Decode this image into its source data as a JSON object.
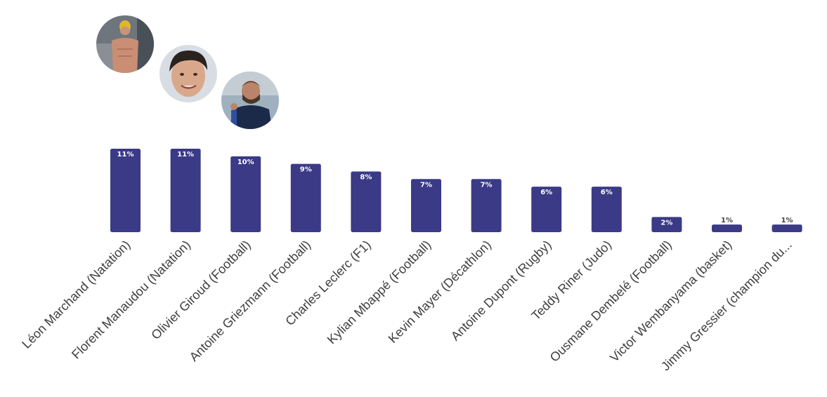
{
  "chart_data": {
    "type": "bar",
    "categories": [
      "Léon Marchand (Natation)",
      "Florent Manaudou (Natation)",
      "Olivier Giroud (Football)",
      "Antoine Griezmann (Football)",
      "Charles Leclerc (F1)",
      "Kylian Mbappé (Football)",
      "Kevin Mayer (Décathlon)",
      "Antoine Dupont (Rugby)",
      "Teddy Riner (Judo)",
      "Ousmane Dembelé (Football)",
      "Victor Wembanyama (basket)",
      "Jimmy Gressier (champion du..."
    ],
    "values": [
      11,
      11,
      10,
      9,
      8,
      7,
      7,
      6,
      6,
      2,
      1,
      1
    ],
    "data_labels": [
      "11%",
      "11%",
      "10%",
      "9%",
      "8%",
      "7%",
      "7%",
      "6%",
      "6%",
      "2%",
      "1%",
      "1%"
    ],
    "value_unit": "%",
    "title": "",
    "xlabel": "",
    "ylabel": "",
    "ylim": [
      0,
      11
    ],
    "grid": false,
    "legend": "none",
    "bar_color": "#3b3a86"
  },
  "avatars": [
    {
      "name": "swimmer-photo-icon"
    },
    {
      "name": "young-man-portrait-icon"
    },
    {
      "name": "football-player-photo-icon"
    }
  ]
}
